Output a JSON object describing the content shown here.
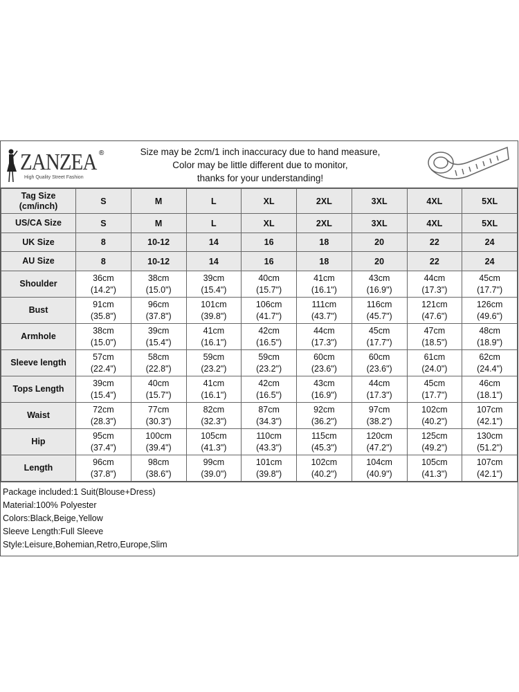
{
  "brand": {
    "name": "ZANZEA",
    "registered": "®",
    "tagline": "High Quality Street Fashion"
  },
  "notice": [
    "Size may be 2cm/1 inch inaccuracy due to hand measure,",
    "Color may be little different due to monitor,",
    "thanks for your understanding!"
  ],
  "header_rows": [
    {
      "label": "Tag Size (cm/inch)",
      "values": [
        "S",
        "M",
        "L",
        "XL",
        "2XL",
        "3XL",
        "4XL",
        "5XL"
      ]
    },
    {
      "label": "US/CA Size",
      "values": [
        "S",
        "M",
        "L",
        "XL",
        "2XL",
        "3XL",
        "4XL",
        "5XL"
      ]
    },
    {
      "label": "UK Size",
      "values": [
        "8",
        "10-12",
        "14",
        "16",
        "18",
        "20",
        "22",
        "24"
      ]
    },
    {
      "label": "AU Size",
      "values": [
        "8",
        "10-12",
        "14",
        "16",
        "18",
        "20",
        "22",
        "24"
      ]
    }
  ],
  "measure_rows": [
    {
      "label": "Shoulder",
      "cm": [
        "36cm",
        "38cm",
        "39cm",
        "40cm",
        "41cm",
        "43cm",
        "44cm",
        "45cm"
      ],
      "in": [
        "(14.2\")",
        "(15.0\")",
        "(15.4\")",
        "(15.7\")",
        "(16.1\")",
        "(16.9\")",
        "(17.3\")",
        "(17.7\")"
      ]
    },
    {
      "label": "Bust",
      "cm": [
        "91cm",
        "96cm",
        "101cm",
        "106cm",
        "111cm",
        "116cm",
        "121cm",
        "126cm"
      ],
      "in": [
        "(35.8\")",
        "(37.8\")",
        "(39.8\")",
        "(41.7\")",
        "(43.7\")",
        "(45.7\")",
        "(47.6\")",
        "(49.6\")"
      ]
    },
    {
      "label": "Armhole",
      "cm": [
        "38cm",
        "39cm",
        "41cm",
        "42cm",
        "44cm",
        "45cm",
        "47cm",
        "48cm"
      ],
      "in": [
        "(15.0\")",
        "(15.4\")",
        "(16.1\")",
        "(16.5\")",
        "(17.3\")",
        "(17.7\")",
        "(18.5\")",
        "(18.9\")"
      ]
    },
    {
      "label": "Sleeve length",
      "cm": [
        "57cm",
        "58cm",
        "59cm",
        "59cm",
        "60cm",
        "60cm",
        "61cm",
        "62cm"
      ],
      "in": [
        "(22.4\")",
        "(22.8\")",
        "(23.2\")",
        "(23.2\")",
        "(23.6\")",
        "(23.6\")",
        "(24.0\")",
        "(24.4\")"
      ]
    },
    {
      "label": "Tops Length",
      "cm": [
        "39cm",
        "40cm",
        "41cm",
        "42cm",
        "43cm",
        "44cm",
        "45cm",
        "46cm"
      ],
      "in": [
        "(15.4\")",
        "(15.7\")",
        "(16.1\")",
        "(16.5\")",
        "(16.9\")",
        "(17.3\")",
        "(17.7\")",
        "(18.1\")"
      ]
    },
    {
      "label": "Waist",
      "cm": [
        "72cm",
        "77cm",
        "82cm",
        "87cm",
        "92cm",
        "97cm",
        "102cm",
        "107cm"
      ],
      "in": [
        "(28.3\")",
        "(30.3\")",
        "(32.3\")",
        "(34.3\")",
        "(36.2\")",
        "(38.2\")",
        "(40.2\")",
        "(42.1\")"
      ]
    },
    {
      "label": "Hip",
      "cm": [
        "95cm",
        "100cm",
        "105cm",
        "110cm",
        "115cm",
        "120cm",
        "125cm",
        "130cm"
      ],
      "in": [
        "(37.4\")",
        "(39.4\")",
        "(41.3\")",
        "(43.3\")",
        "(45.3\")",
        "(47.2\")",
        "(49.2\")",
        "(51.2\")"
      ]
    },
    {
      "label": "Length",
      "cm": [
        "96cm",
        "98cm",
        "99cm",
        "101cm",
        "102cm",
        "104cm",
        "105cm",
        "107cm"
      ],
      "in": [
        "(37.8\")",
        "(38.6\")",
        "(39.0\")",
        "(39.8\")",
        "(40.2\")",
        "(40.9\")",
        "(41.3\")",
        "(42.1\")"
      ]
    }
  ],
  "footer": [
    "Package included:1 Suit(Blouse+Dress)",
    "Material:100% Polyester",
    "Colors:Black,Beige,Yellow",
    "Sleeve Length:Full Sleeve",
    "Style:Leisure,Bohemian,Retro,Europe,Slim"
  ]
}
